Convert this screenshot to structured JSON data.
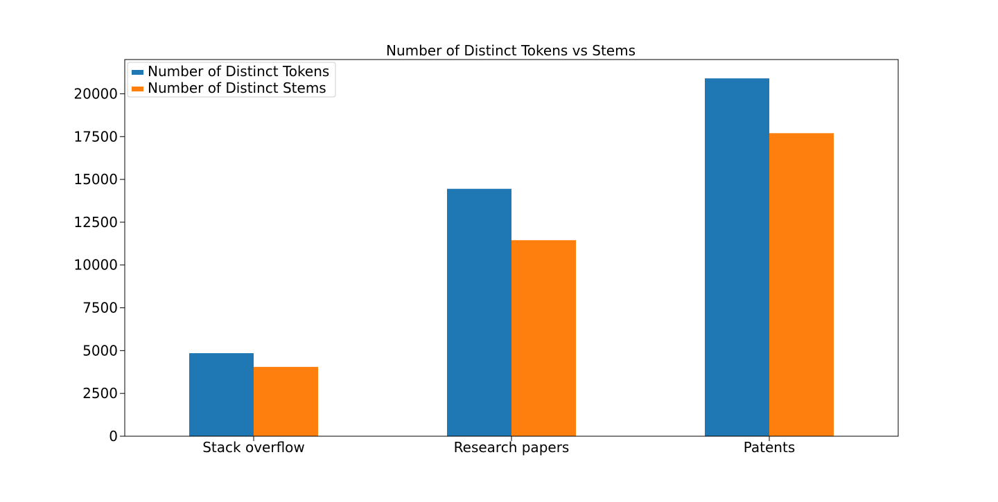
{
  "chart_data": {
    "type": "bar",
    "title": "Number of Distinct Tokens vs Stems",
    "xlabel": "",
    "ylabel": "",
    "categories": [
      "Stack overflow",
      "Research papers",
      "Patents"
    ],
    "series": [
      {
        "name": "Number of Distinct Tokens",
        "color": "#1f77b4",
        "values": [
          4850,
          14450,
          20900
        ]
      },
      {
        "name": "Number of Distinct Stems",
        "color": "#ff7f0e",
        "values": [
          4050,
          11450,
          17700
        ]
      }
    ],
    "ylim": [
      0,
      22000
    ],
    "yticks": [
      0,
      2500,
      5000,
      7500,
      10000,
      12500,
      15000,
      17500,
      20000
    ],
    "ytick_labels": [
      "0",
      "2500",
      "5000",
      "7500",
      "10000",
      "12500",
      "15000",
      "17500",
      "20000"
    ],
    "grid": false,
    "legend_position": "top-left"
  }
}
